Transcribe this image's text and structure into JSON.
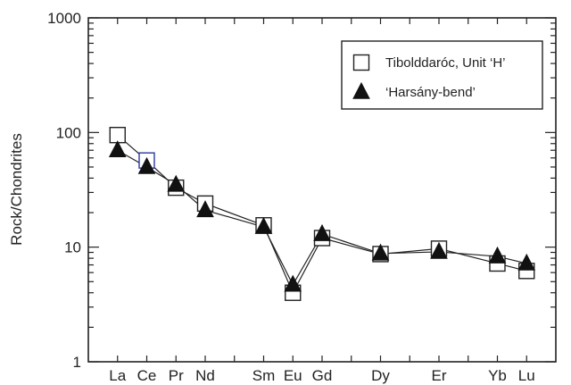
{
  "chart_data": {
    "type": "line",
    "yscale": "log",
    "ylim": [
      1,
      1000
    ],
    "ylabel": "Rock/Chondrites",
    "xlabel": "",
    "title": "",
    "categories": [
      "La",
      "Ce",
      "Pr",
      "Nd",
      "Sm",
      "Eu",
      "Gd",
      "Dy",
      "Er",
      "Yb",
      "Lu"
    ],
    "x_positions": {
      "La": 57,
      "Ce": 58,
      "Pr": 59,
      "Nd": 60,
      "Sm": 62,
      "Eu": 63,
      "Gd": 64,
      "Dy": 66,
      "Er": 68,
      "Yb": 70,
      "Lu": 71
    },
    "y_ticks": [
      "1",
      "10",
      "100",
      "1000"
    ],
    "grid": false,
    "legend": "top-right",
    "series": [
      {
        "name": "Tibolddaróc, Unit ‘H’",
        "marker": "open-square",
        "values": [
          95,
          57,
          33,
          24,
          15.5,
          4,
          12,
          8.7,
          9.7,
          7.2,
          6.2
        ]
      },
      {
        "name": "‘Harsány-bend’",
        "marker": "filled-triangle",
        "values": [
          70,
          50,
          35,
          21,
          15,
          4.7,
          13,
          8.8,
          9.1,
          8.3,
          7.2
        ]
      }
    ],
    "colors": {
      "axis": "#222222",
      "line": "#222222",
      "marker_fill_filled": "#111111",
      "marker_fill_open": "#ffffff",
      "highlight_edge": "#2a3a9e"
    },
    "highlight": {
      "series": 0,
      "category": "Ce"
    }
  }
}
